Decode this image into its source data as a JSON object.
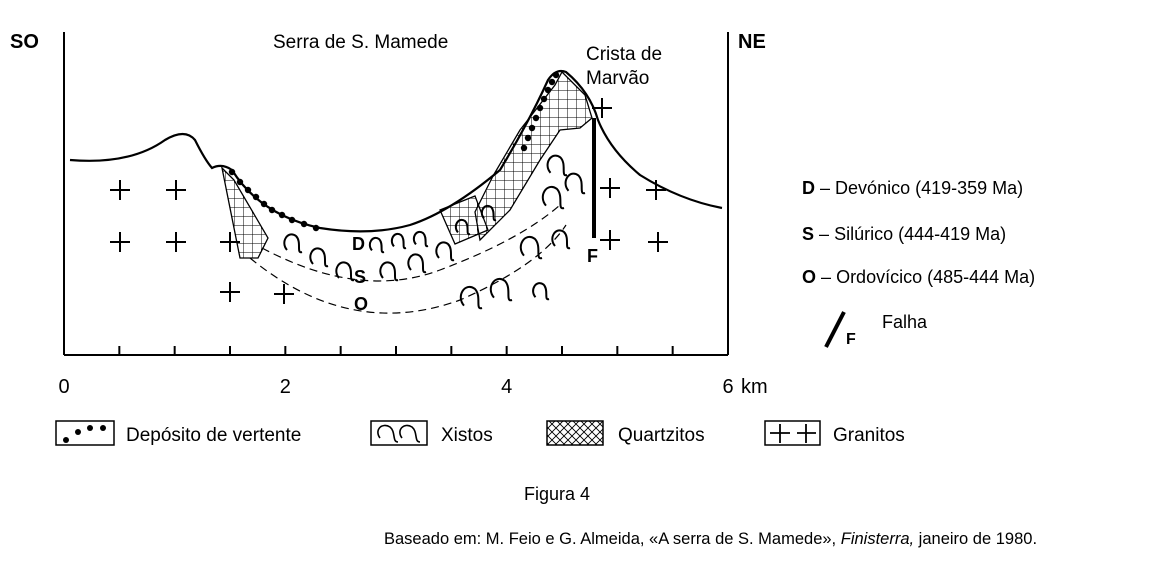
{
  "section": {
    "left_label": "SO",
    "right_label": "NE",
    "mountain_label": "Serra de S. Mamede",
    "crest_label_line1": "Crista de",
    "crest_label_line2": "Marvão",
    "fault_label": "F",
    "unit_labels": [
      "D",
      "S",
      "O"
    ]
  },
  "axis": {
    "ticks": [
      {
        "value": 0,
        "label": "0"
      },
      {
        "value": 2,
        "label": "2"
      },
      {
        "value": 4,
        "label": "4"
      },
      {
        "value": 6,
        "label": "6"
      }
    ],
    "unit": "km",
    "minor_step": 0.5,
    "range": [
      0,
      6
    ]
  },
  "strata_legend": [
    {
      "code": "D",
      "separator": "–",
      "name": "Devónico (419-359 Ma)"
    },
    {
      "code": "S",
      "separator": "–",
      "name": "Silúrico (444-419 Ma)"
    },
    {
      "code": "O",
      "separator": "–",
      "name": "Ordovícico (485-444 Ma)"
    }
  ],
  "fault_legend": {
    "symbol": "F",
    "name": "Falha"
  },
  "pattern_legend": [
    {
      "pattern": "dots",
      "label": "Depósito de vertente"
    },
    {
      "pattern": "waves",
      "label": "Xistos"
    },
    {
      "pattern": "crosshatch",
      "label": "Quartzitos"
    },
    {
      "pattern": "crosses",
      "label": "Granitos"
    }
  ],
  "caption": "Figura 4",
  "source": {
    "prefix": "Baseado em: M. Feio e G. Almeida, «A serra de S. Mamede», ",
    "italic": "Finisterra,",
    "suffix": " janeiro de 1980."
  }
}
